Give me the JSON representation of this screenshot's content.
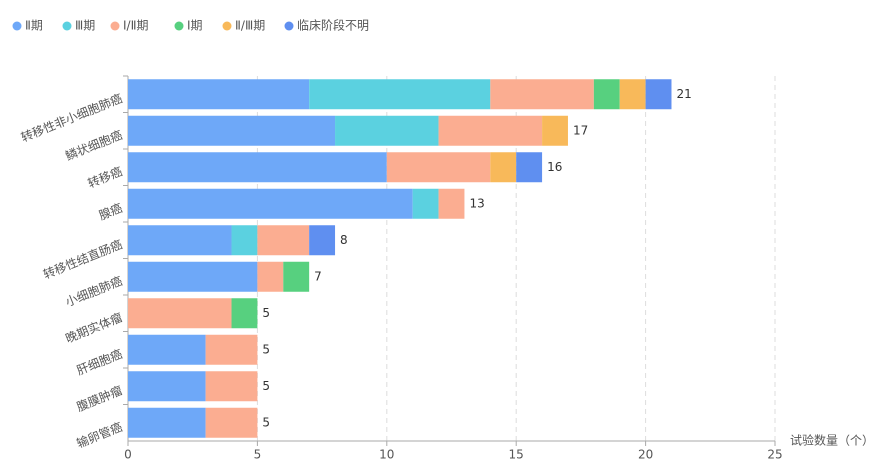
{
  "chart_data": {
    "type": "stacked-bar-horizontal",
    "categories": [
      "转移性非小细胞肺癌",
      "鳞状细胞癌",
      "转移癌",
      "腺癌",
      "转移性结直肠癌",
      "小细胞肺癌",
      "晚期实体瘤",
      "肝细胞癌",
      "腹膜肿瘤",
      "输卵管癌"
    ],
    "series": [
      {
        "name": "Ⅱ期",
        "color": "#6ea8f8",
        "values": [
          7,
          8,
          10,
          11,
          4,
          5,
          0,
          3,
          3,
          3
        ]
      },
      {
        "name": "Ⅲ期",
        "color": "#5bd1e0",
        "values": [
          7,
          4,
          0,
          1,
          1,
          0,
          0,
          0,
          0,
          0
        ]
      },
      {
        "name": "Ⅰ/Ⅱ期",
        "color": "#fbad91",
        "values": [
          4,
          4,
          4,
          1,
          2,
          1,
          4,
          2,
          2,
          2
        ]
      },
      {
        "name": "Ⅰ期",
        "color": "#57d07f",
        "values": [
          1,
          0,
          0,
          0,
          0,
          1,
          1,
          0,
          0,
          0
        ]
      },
      {
        "name": "Ⅱ/Ⅲ期",
        "color": "#f8b95a",
        "values": [
          1,
          1,
          1,
          0,
          0,
          0,
          0,
          0,
          0,
          0
        ]
      },
      {
        "name": "临床阶段不明",
        "color": "#5f8ff0",
        "values": [
          1,
          0,
          1,
          0,
          1,
          0,
          0,
          0,
          0,
          0
        ]
      }
    ],
    "totals": [
      21,
      17,
      16,
      13,
      8,
      7,
      5,
      5,
      5,
      5
    ],
    "xlabel": "试验数量（个）",
    "xlim": [
      0,
      25
    ],
    "xticks": [
      0,
      5,
      10,
      15,
      20,
      25
    ],
    "grid": true,
    "legend": "top-left"
  }
}
